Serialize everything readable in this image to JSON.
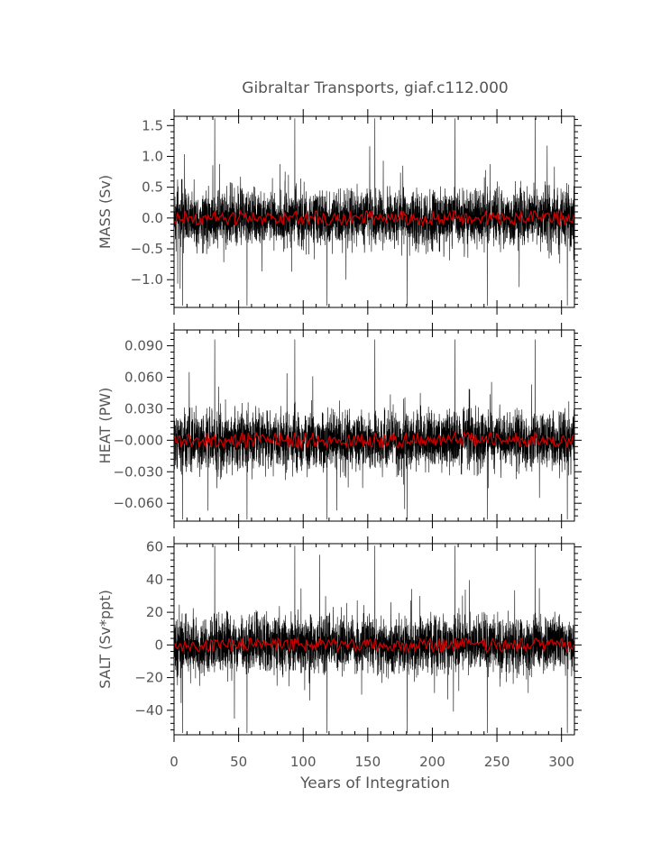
{
  "chart_data": {
    "type": "line",
    "title": "Gibraltar Transports, giaf.c112.000",
    "xlabel": "Years of Integration",
    "xlim": [
      0,
      310
    ],
    "xticks": [
      0,
      50,
      100,
      150,
      200,
      250,
      300
    ],
    "series_colors": {
      "raw": "#000000",
      "smoothed": "#cc0000"
    },
    "panels": [
      {
        "id": "mass",
        "ylabel": "MASS (Sv)",
        "ylim": [
          -1.45,
          1.65
        ],
        "yticks": [
          -1.0,
          -0.5,
          0.0,
          0.5,
          1.0,
          1.5
        ],
        "ytick_labels": [
          "−1.0",
          "−0.5",
          "0.0",
          "0.5",
          "1.0",
          "1.5"
        ],
        "noise_amplitude": 0.35,
        "spike_max": 1.65,
        "spike_min": -1.45,
        "smoothed_amplitude": 0.07
      },
      {
        "id": "heat",
        "ylabel": "HEAT (PW)",
        "ylim": [
          -0.077,
          0.105
        ],
        "yticks": [
          -0.06,
          -0.03,
          0.0,
          0.03,
          0.06,
          0.09
        ],
        "ytick_labels": [
          "−0.060",
          "−0.030",
          "−0.000",
          "0.030",
          "0.060",
          "0.090"
        ],
        "noise_amplitude": 0.021,
        "spike_max": 0.098,
        "spike_min": -0.077,
        "smoothed_amplitude": 0.0045
      },
      {
        "id": "salt",
        "ylabel": "SALT (Sv*ppt)",
        "ylim": [
          -55,
          62
        ],
        "yticks": [
          -40,
          -20,
          0,
          20,
          40,
          60
        ],
        "ytick_labels": [
          "−40",
          "−20",
          "0",
          "20",
          "40",
          "60"
        ],
        "noise_amplitude": 13,
        "spike_max": 62,
        "spike_min": -55,
        "smoothed_amplitude": 2.5
      }
    ]
  }
}
